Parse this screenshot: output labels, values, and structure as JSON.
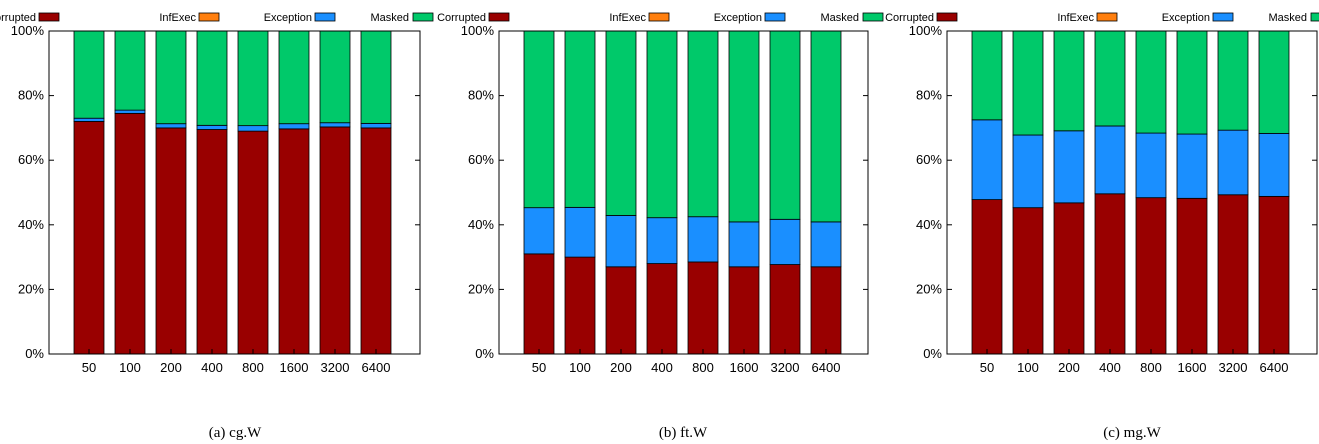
{
  "chart_data": [
    {
      "type": "bar",
      "stacked": true,
      "caption": "(a)  cg.W",
      "categories": [
        "50",
        "100",
        "200",
        "400",
        "800",
        "1600",
        "3200",
        "6400"
      ],
      "series": [
        {
          "name": "Corrupted",
          "color": "#990000",
          "values": [
            72,
            74.5,
            70,
            69.5,
            69,
            69.7,
            70.3,
            70
          ]
        },
        {
          "name": "InfExec",
          "color": "#ff7f0e",
          "values": [
            0,
            0,
            0,
            0,
            0,
            0,
            0,
            0
          ]
        },
        {
          "name": "Exception",
          "color": "#1a8fff",
          "values": [
            1,
            1,
            1.3,
            1.3,
            1.7,
            1.6,
            1.3,
            1.4
          ]
        },
        {
          "name": "Masked",
          "color": "#00c96a",
          "values": [
            27,
            24.5,
            28.7,
            29.2,
            29.3,
            28.7,
            28.4,
            28.6
          ]
        }
      ],
      "ylim": [
        0,
        100
      ],
      "yticks": [
        "0%",
        "20%",
        "40%",
        "60%",
        "80%",
        "100%"
      ],
      "legend": "top"
    },
    {
      "type": "bar",
      "stacked": true,
      "caption": "(b)  ft.W",
      "categories": [
        "50",
        "100",
        "200",
        "400",
        "800",
        "1600",
        "3200",
        "6400"
      ],
      "series": [
        {
          "name": "Corrupted",
          "color": "#990000",
          "values": [
            31,
            30,
            27,
            28,
            28.5,
            27,
            27.7,
            27
          ]
        },
        {
          "name": "InfExec",
          "color": "#ff7f0e",
          "values": [
            0,
            0,
            0,
            0,
            0,
            0,
            0,
            0
          ]
        },
        {
          "name": "Exception",
          "color": "#1a8fff",
          "values": [
            14.3,
            15.4,
            15.9,
            14.2,
            14,
            13.9,
            14,
            13.9
          ]
        },
        {
          "name": "Masked",
          "color": "#00c96a",
          "values": [
            54.7,
            54.6,
            57.1,
            57.8,
            57.5,
            59.1,
            58.3,
            59.1
          ]
        }
      ],
      "ylim": [
        0,
        100
      ],
      "yticks": [
        "0%",
        "20%",
        "40%",
        "60%",
        "80%",
        "100%"
      ],
      "legend": "top"
    },
    {
      "type": "bar",
      "stacked": true,
      "caption": "(c)  mg.W",
      "categories": [
        "50",
        "100",
        "200",
        "400",
        "800",
        "1600",
        "3200",
        "6400"
      ],
      "series": [
        {
          "name": "Corrupted",
          "color": "#990000",
          "values": [
            47.8,
            45.3,
            46.8,
            49.6,
            48.4,
            48.2,
            49.3,
            48.8
          ]
        },
        {
          "name": "InfExec",
          "color": "#ff7f0e",
          "values": [
            0,
            0,
            0,
            0,
            0,
            0,
            0,
            0
          ]
        },
        {
          "name": "Exception",
          "color": "#1a8fff",
          "values": [
            24.7,
            22.5,
            22.3,
            21,
            20,
            19.9,
            20,
            19.5
          ]
        },
        {
          "name": "Masked",
          "color": "#00c96a",
          "values": [
            27.5,
            32.2,
            30.9,
            29.4,
            31.6,
            31.9,
            30.7,
            31.7
          ]
        }
      ],
      "ylim": [
        0,
        100
      ],
      "yticks": [
        "0%",
        "20%",
        "40%",
        "60%",
        "80%",
        "100%"
      ],
      "legend": "top"
    }
  ]
}
